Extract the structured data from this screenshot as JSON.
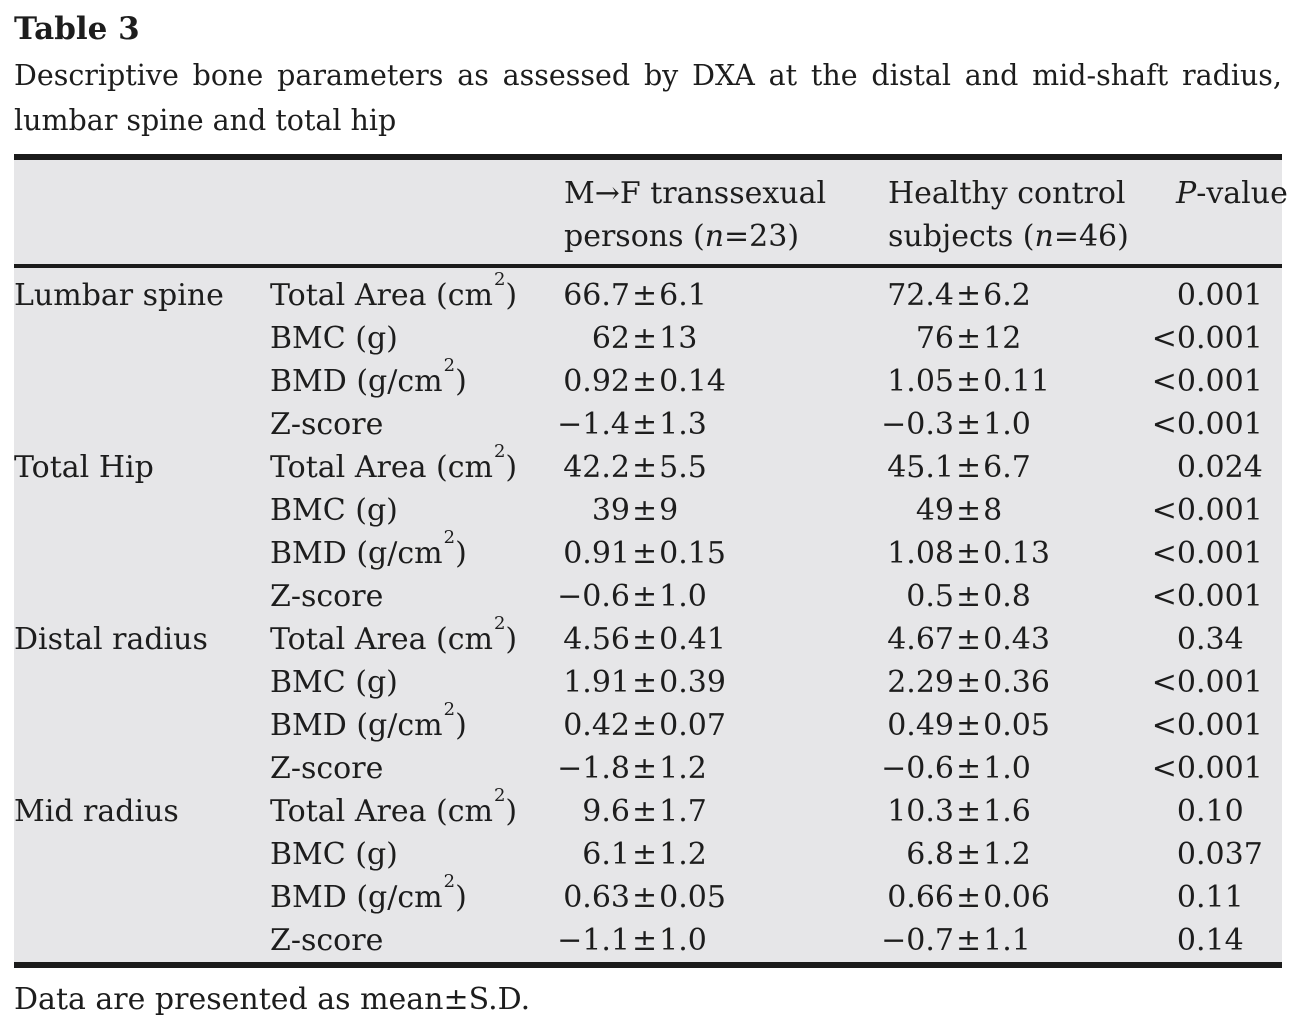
{
  "colors": {
    "page_background": "#ffffff",
    "table_background": "#e6e6e8",
    "rule": "#1b1b1b",
    "text": "#1d1d1d"
  },
  "table_number": "Table 3",
  "caption": {
    "line1": "Descriptive bone parameters as assessed by DXA at the distal and mid-shaft radius,",
    "line2": "lumbar spine and total hip"
  },
  "table": {
    "header": {
      "site_col": "",
      "param_col": "",
      "mf_col_lines": [
        "M→F transsexual",
        "persons (n=23)"
      ],
      "hc_col_lines": [
        "Healthy control",
        "subjects (n=46)"
      ],
      "p_col": "P-value"
    },
    "groups": [
      {
        "site": "Lumbar spine",
        "rows": [
          {
            "param": "Total Area (cm²)",
            "mf": "66.7±6.1",
            "hc": "72.4±6.2",
            "p": "0.001"
          },
          {
            "param": "BMC (g)",
            "mf": "62±13",
            "hc": "76±12",
            "p": "<0.001"
          },
          {
            "param": "BMD (g/cm²)",
            "mf": "0.92±0.14",
            "hc": "1.05±0.11",
            "p": "<0.001"
          },
          {
            "param": "Z-score",
            "mf": "−1.4±1.3",
            "hc": "−0.3±1.0",
            "p": "<0.001"
          }
        ]
      },
      {
        "site": "Total Hip",
        "rows": [
          {
            "param": "Total Area (cm²)",
            "mf": "42.2±5.5",
            "hc": "45.1±6.7",
            "p": "0.024"
          },
          {
            "param": "BMC (g)",
            "mf": "39±9",
            "hc": "49±8",
            "p": "<0.001"
          },
          {
            "param": "BMD (g/cm²)",
            "mf": "0.91±0.15",
            "hc": "1.08±0.13",
            "p": "<0.001"
          },
          {
            "param": "Z-score",
            "mf": "−0.6±1.0",
            "hc": "0.5±0.8",
            "p": "<0.001"
          }
        ]
      },
      {
        "site": "Distal radius",
        "rows": [
          {
            "param": "Total Area (cm²)",
            "mf": "4.56±0.41",
            "hc": "4.67±0.43",
            "p": "0.34"
          },
          {
            "param": "BMC (g)",
            "mf": "1.91±0.39",
            "hc": "2.29±0.36",
            "p": "<0.001"
          },
          {
            "param": "BMD (g/cm²)",
            "mf": "0.42±0.07",
            "hc": "0.49±0.05",
            "p": "<0.001"
          },
          {
            "param": "Z-score",
            "mf": "−1.8±1.2",
            "hc": "−0.6±1.0",
            "p": "<0.001"
          }
        ]
      },
      {
        "site": "Mid radius",
        "rows": [
          {
            "param": "Total Area (cm²)",
            "mf": "9.6±1.7",
            "hc": "10.3±1.6",
            "p": "0.10"
          },
          {
            "param": "BMC (g)",
            "mf": "6.1±1.2",
            "hc": "6.8±1.2",
            "p": "0.037"
          },
          {
            "param": "BMD (g/cm²)",
            "mf": "0.63±0.05",
            "hc": "0.66±0.06",
            "p": "0.11"
          },
          {
            "param": "Z-score",
            "mf": "−1.1±1.0",
            "hc": "−0.7±1.1",
            "p": "0.14"
          }
        ]
      }
    ]
  },
  "footnote": "Data are presented as mean±S.D."
}
